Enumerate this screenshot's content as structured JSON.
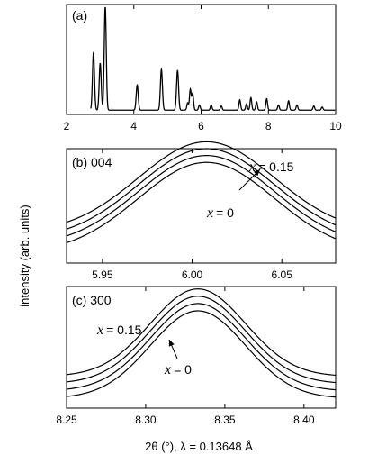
{
  "figure": {
    "ylabel": "intensity (arb. units)",
    "xlabel": "2θ (°), λ = 0.13648 Å"
  },
  "chart_data": [
    {
      "type": "line",
      "panel_label": "(a)",
      "xlim": [
        2,
        10
      ],
      "xticks": [
        2,
        4,
        6,
        8,
        10
      ],
      "ylim": [
        0,
        1.0
      ],
      "yticks_shown": false,
      "peaks": [
        {
          "x": 2.8,
          "y": 0.55,
          "w": 0.03
        },
        {
          "x": 3.0,
          "y": 0.45,
          "w": 0.03
        },
        {
          "x": 3.15,
          "y": 0.99,
          "w": 0.03
        },
        {
          "x": 4.1,
          "y": 0.24,
          "w": 0.03
        },
        {
          "x": 4.82,
          "y": 0.39,
          "w": 0.03
        },
        {
          "x": 5.3,
          "y": 0.38,
          "w": 0.03
        },
        {
          "x": 5.6,
          "y": 0.07,
          "w": 0.025
        },
        {
          "x": 5.68,
          "y": 0.2,
          "w": 0.025
        },
        {
          "x": 5.75,
          "y": 0.16,
          "w": 0.025
        },
        {
          "x": 5.95,
          "y": 0.05,
          "w": 0.025
        },
        {
          "x": 6.3,
          "y": 0.05,
          "w": 0.025
        },
        {
          "x": 6.6,
          "y": 0.04,
          "w": 0.025
        },
        {
          "x": 7.15,
          "y": 0.1,
          "w": 0.025
        },
        {
          "x": 7.35,
          "y": 0.06,
          "w": 0.025
        },
        {
          "x": 7.48,
          "y": 0.12,
          "w": 0.025
        },
        {
          "x": 7.65,
          "y": 0.08,
          "w": 0.025
        },
        {
          "x": 7.95,
          "y": 0.11,
          "w": 0.025
        },
        {
          "x": 8.3,
          "y": 0.05,
          "w": 0.025
        },
        {
          "x": 8.6,
          "y": 0.09,
          "w": 0.025
        },
        {
          "x": 8.85,
          "y": 0.05,
          "w": 0.025
        },
        {
          "x": 9.35,
          "y": 0.04,
          "w": 0.025
        },
        {
          "x": 9.6,
          "y": 0.03,
          "w": 0.025
        }
      ]
    },
    {
      "type": "line",
      "panel_label": "(b) 004",
      "xlim": [
        5.93,
        6.08
      ],
      "xticks": [
        5.95,
        6.0,
        6.05
      ],
      "ylim": [
        0,
        1.0
      ],
      "yticks_shown": false,
      "peak_center": 6.008,
      "peak_sigma": 0.038,
      "baseline": 0.08,
      "amplitude": 0.8,
      "series_offsets": [
        0.0,
        0.06,
        0.12,
        0.18
      ],
      "annotations": {
        "top_series": {
          "var": "x",
          "value": "= 0.15"
        },
        "bottom_series": {
          "var": "x",
          "value": "= 0"
        }
      }
    },
    {
      "type": "line",
      "panel_label": "(c) 300",
      "xlim": [
        8.25,
        8.42
      ],
      "xticks": [
        8.25,
        8.3,
        8.35,
        8.4
      ],
      "ylim": [
        0,
        1.0
      ],
      "yticks_shown": false,
      "peak_center": 8.333,
      "peak_sigma": 0.03,
      "baseline": 0.08,
      "amplitude": 0.72,
      "series_offsets": [
        0.0,
        0.06,
        0.12,
        0.18
      ],
      "annotations": {
        "top_series": {
          "var": "x",
          "value": "= 0.15"
        },
        "bottom_series": {
          "var": "x",
          "value": "= 0"
        }
      }
    }
  ]
}
